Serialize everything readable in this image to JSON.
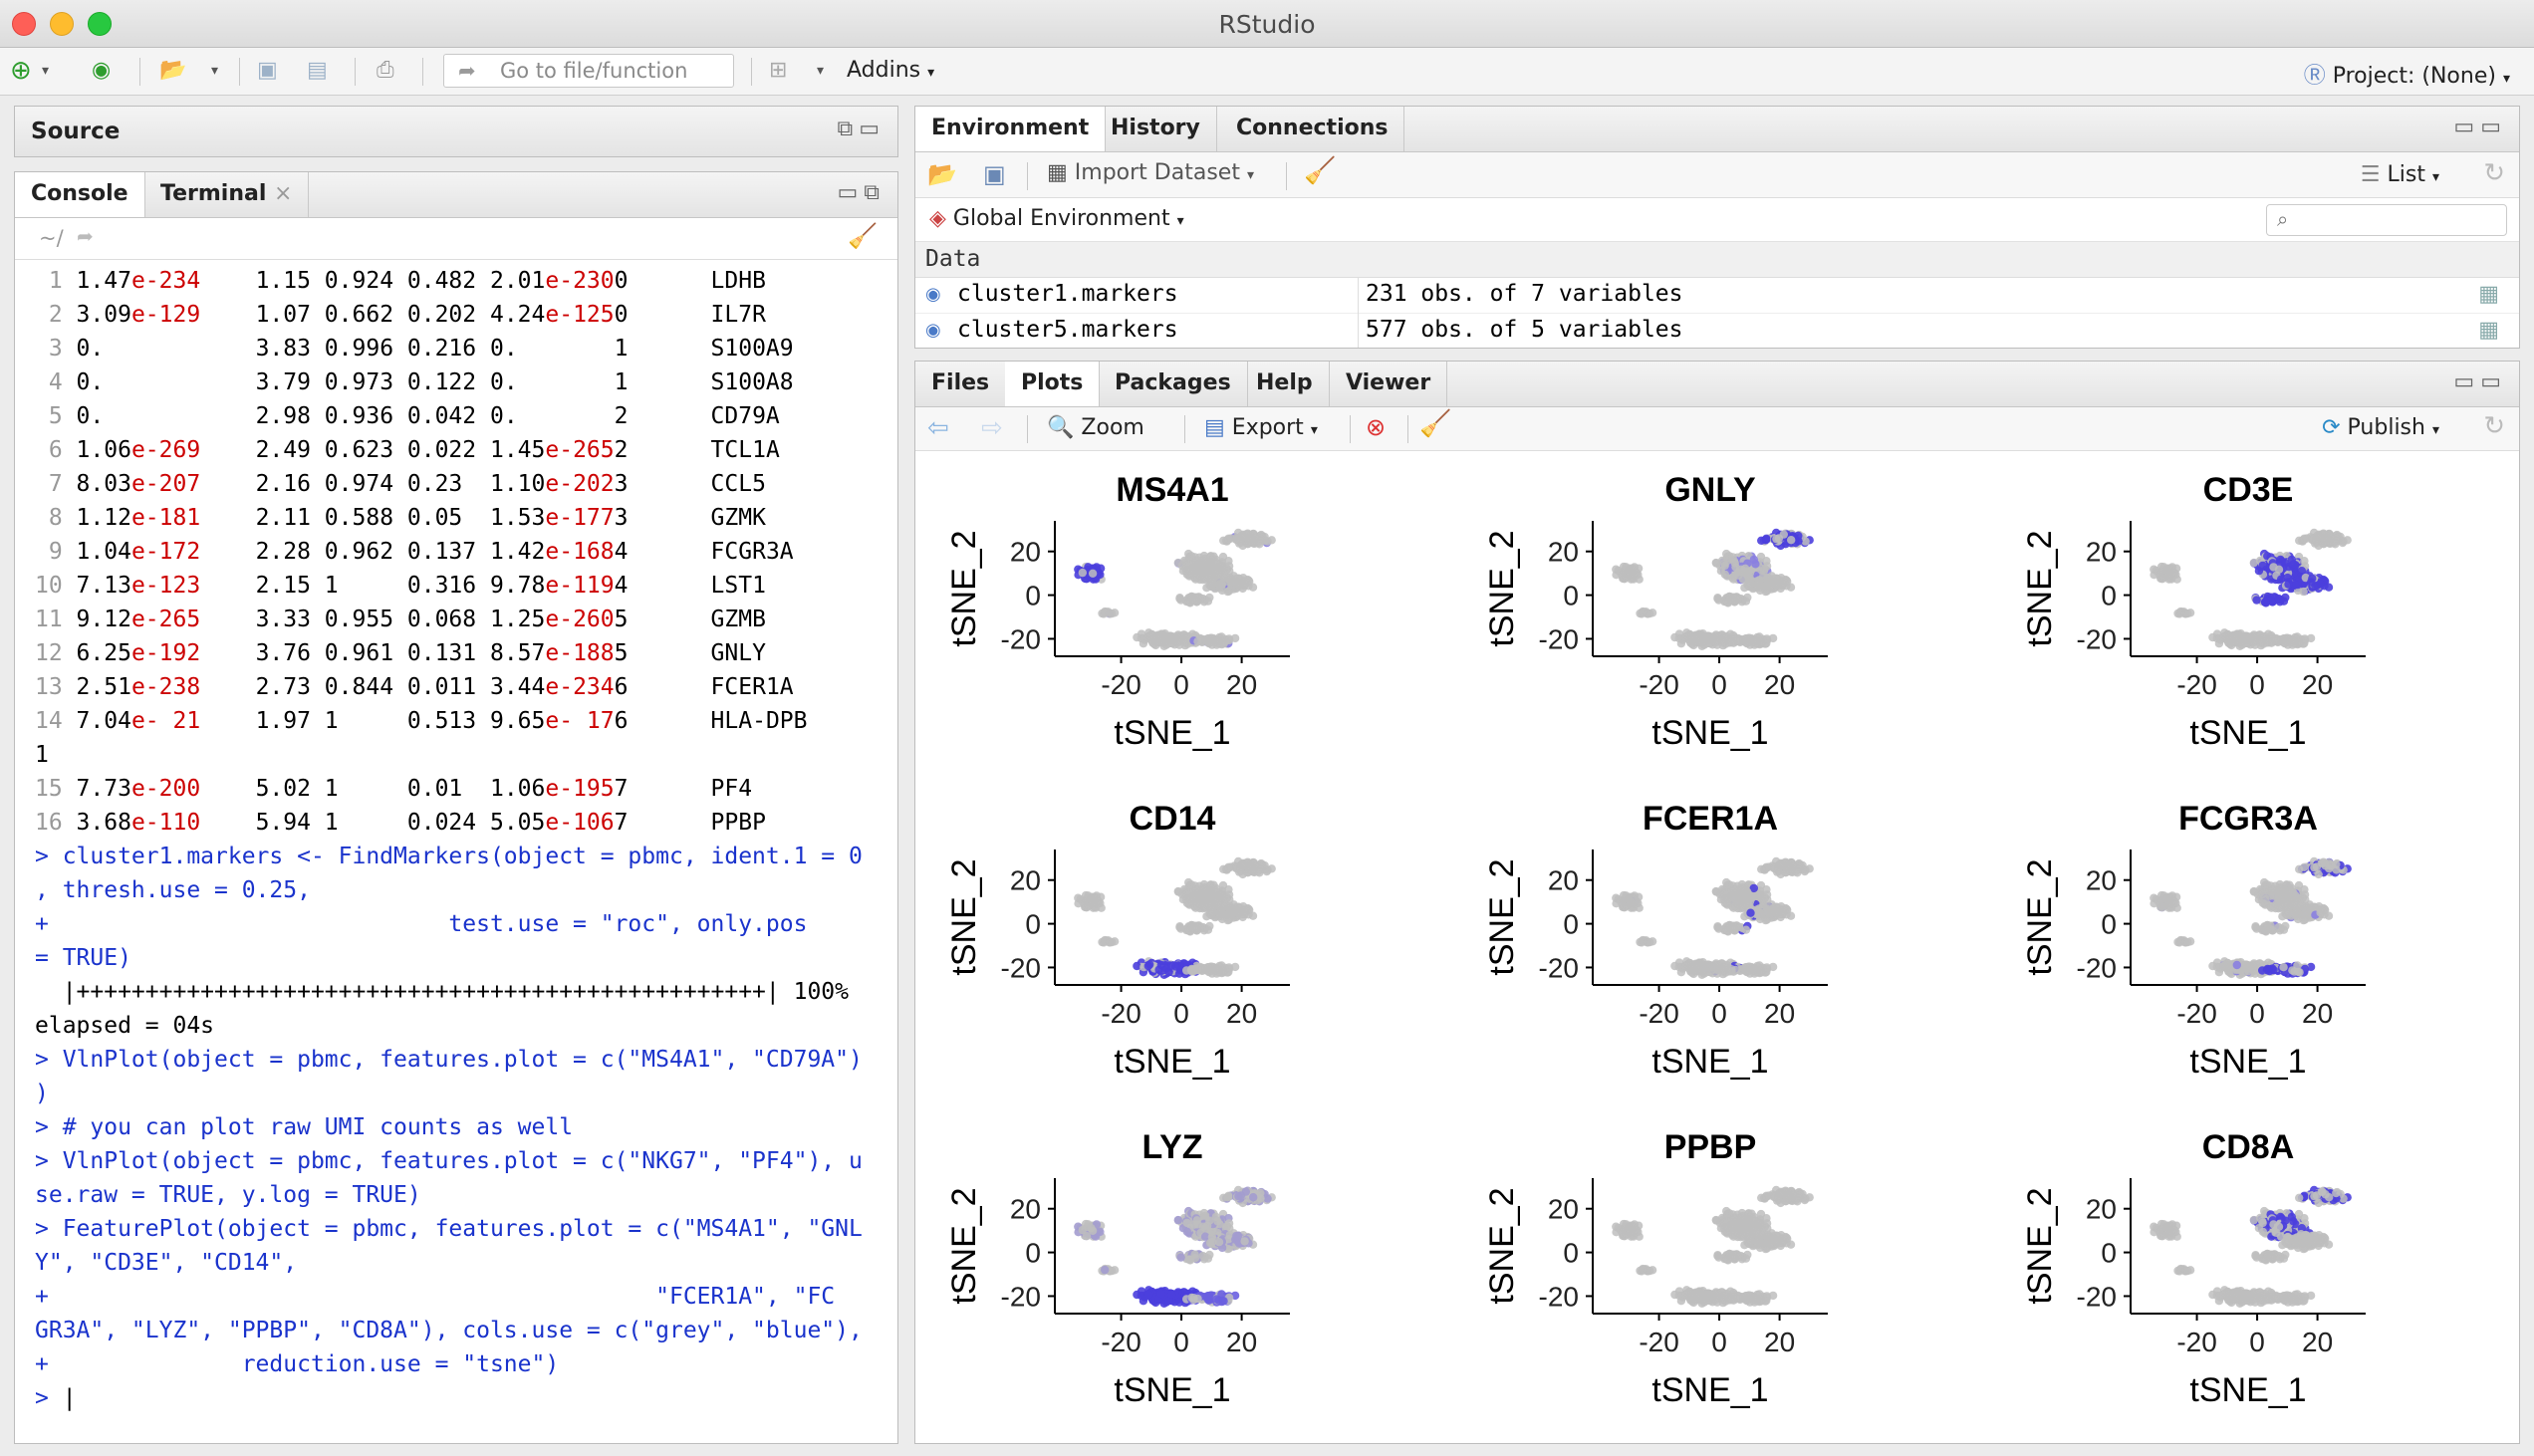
{
  "window": {
    "title": "RStudio"
  },
  "toolbar": {
    "go_to_file_placeholder": "Go to file/function",
    "addins": "Addins",
    "project": "Project: (None)"
  },
  "source_pane": {
    "title": "Source"
  },
  "console_pane": {
    "tabs": [
      "Console",
      "Terminal"
    ],
    "path": "~/",
    "rows": [
      {
        "n": "1",
        "p1": "1.47",
        "e1": "e-234",
        "c2": "1.15",
        "c3": "0.924",
        "c4": "0.482",
        "p2": "2.01",
        "e2": "e-230",
        "cl": "0",
        "gene": "LDHB"
      },
      {
        "n": "2",
        "p1": "3.09",
        "e1": "e-129",
        "c2": "1.07",
        "c3": "0.662",
        "c4": "0.202",
        "p2": "4.24",
        "e2": "e-125",
        "cl": "0",
        "gene": "IL7R"
      },
      {
        "n": "3",
        "p1": "0.",
        "e1": "",
        "c2": "3.83",
        "c3": "0.996",
        "c4": "0.216",
        "p2": "0.",
        "e2": "",
        "cl": "1",
        "gene": "S100A9"
      },
      {
        "n": "4",
        "p1": "0.",
        "e1": "",
        "c2": "3.79",
        "c3": "0.973",
        "c4": "0.122",
        "p2": "0.",
        "e2": "",
        "cl": "1",
        "gene": "S100A8"
      },
      {
        "n": "5",
        "p1": "0.",
        "e1": "",
        "c2": "2.98",
        "c3": "0.936",
        "c4": "0.042",
        "p2": "0.",
        "e2": "",
        "cl": "2",
        "gene": "CD79A"
      },
      {
        "n": "6",
        "p1": "1.06",
        "e1": "e-269",
        "c2": "2.49",
        "c3": "0.623",
        "c4": "0.022",
        "p2": "1.45",
        "e2": "e-265",
        "cl": "2",
        "gene": "TCL1A"
      },
      {
        "n": "7",
        "p1": "8.03",
        "e1": "e-207",
        "c2": "2.16",
        "c3": "0.974",
        "c4": "0.23",
        "p2": "1.10",
        "e2": "e-202",
        "cl": "3",
        "gene": "CCL5"
      },
      {
        "n": "8",
        "p1": "1.12",
        "e1": "e-181",
        "c2": "2.11",
        "c3": "0.588",
        "c4": "0.05",
        "p2": "1.53",
        "e2": "e-177",
        "cl": "3",
        "gene": "GZMK"
      },
      {
        "n": "9",
        "p1": "1.04",
        "e1": "e-172",
        "c2": "2.28",
        "c3": "0.962",
        "c4": "0.137",
        "p2": "1.42",
        "e2": "e-168",
        "cl": "4",
        "gene": "FCGR3A"
      },
      {
        "n": "10",
        "p1": "7.13",
        "e1": "e-123",
        "c2": "2.15",
        "c3": "1",
        "c4": "0.316",
        "p2": "9.78",
        "e2": "e-119",
        "cl": "4",
        "gene": "LST1"
      },
      {
        "n": "11",
        "p1": "9.12",
        "e1": "e-265",
        "c2": "3.33",
        "c3": "0.955",
        "c4": "0.068",
        "p2": "1.25",
        "e2": "e-260",
        "cl": "5",
        "gene": "GZMB"
      },
      {
        "n": "12",
        "p1": "6.25",
        "e1": "e-192",
        "c2": "3.76",
        "c3": "0.961",
        "c4": "0.131",
        "p2": "8.57",
        "e2": "e-188",
        "cl": "5",
        "gene": "GNLY"
      },
      {
        "n": "13",
        "p1": "2.51",
        "e1": "e-238",
        "c2": "2.73",
        "c3": "0.844",
        "c4": "0.011",
        "p2": "3.44",
        "e2": "e-234",
        "cl": "6",
        "gene": "FCER1A"
      },
      {
        "n": "14",
        "p1": "7.04",
        "e1": "e- 21",
        "c2": "1.97",
        "c3": "1",
        "c4": "0.513",
        "p2": "9.65",
        "e2": "e- 17",
        "cl": "6",
        "gene": "HLA-DPB"
      },
      {
        "n": "",
        "p1": "",
        "e1": "",
        "c2": "",
        "c3": "",
        "c4": "",
        "p2": "",
        "e2": "",
        "cl": "",
        "gene": "",
        "wrap": "1"
      },
      {
        "n": "15",
        "p1": "7.73",
        "e1": "e-200",
        "c2": "5.02",
        "c3": "1",
        "c4": "0.01",
        "p2": "1.06",
        "e2": "e-195",
        "cl": "7",
        "gene": "PF4"
      },
      {
        "n": "16",
        "p1": "3.68",
        "e1": "e-110",
        "c2": "5.94",
        "c3": "1",
        "c4": "0.024",
        "p2": "5.05",
        "e2": "e-106",
        "cl": "7",
        "gene": "PPBP"
      }
    ],
    "commands": [
      {
        "text": "> cluster1.markers <- FindMarkers(object = pbmc, ident.1 = 0",
        "cls": "blue"
      },
      {
        "text": ", thresh.use = 0.25,",
        "cls": "blue"
      },
      {
        "text": "+                             test.use = \"roc\", only.pos",
        "cls": "blue"
      },
      {
        "text": "= TRUE)",
        "cls": "blue"
      },
      {
        "text": "  |++++++++++++++++++++++++++++++++++++++++++++++++++| 100%",
        "cls": ""
      },
      {
        "text": "elapsed = 04s",
        "cls": ""
      },
      {
        "text": "> VlnPlot(object = pbmc, features.plot = c(\"MS4A1\", \"CD79A\")",
        "cls": "blue"
      },
      {
        "text": ")",
        "cls": "blue"
      },
      {
        "text": "> # you can plot raw UMI counts as well",
        "cls": "blue"
      },
      {
        "text": "> VlnPlot(object = pbmc, features.plot = c(\"NKG7\", \"PF4\"), u",
        "cls": "blue"
      },
      {
        "text": "se.raw = TRUE, y.log = TRUE)",
        "cls": "blue"
      },
      {
        "text": "> FeaturePlot(object = pbmc, features.plot = c(\"MS4A1\", \"GNL",
        "cls": "blue"
      },
      {
        "text": "Y\", \"CD3E\", \"CD14\",",
        "cls": "blue"
      },
      {
        "text": "+                                            \"FCER1A\", \"FC",
        "cls": "blue"
      },
      {
        "text": "GR3A\", \"LYZ\", \"PPBP\", \"CD8A\"), cols.use = c(\"grey\", \"blue\"),",
        "cls": "blue"
      },
      {
        "text": "+              reduction.use = \"tsne\")",
        "cls": "blue"
      },
      {
        "text": "> ",
        "cls": "blue"
      }
    ]
  },
  "env_pane": {
    "tabs": [
      "Environment",
      "History",
      "Connections"
    ],
    "import_dataset": "Import Dataset",
    "list_label": "List",
    "global_env": "Global Environment",
    "section": "Data",
    "objects": [
      {
        "name": "cluster1.markers",
        "value": "231 obs. of 7 variables"
      },
      {
        "name": "cluster5.markers",
        "value": "577 obs. of 5 variables"
      }
    ]
  },
  "files_pane": {
    "tabs": [
      "Files",
      "Plots",
      "Packages",
      "Help",
      "Viewer"
    ],
    "zoom": "Zoom",
    "export": "Export",
    "publish": "Publish"
  },
  "plots": {
    "panels": [
      {
        "gene": "MS4A1",
        "highlight": "left"
      },
      {
        "gene": "GNLY",
        "highlight": "topright"
      },
      {
        "gene": "CD3E",
        "highlight": "mainbody"
      },
      {
        "gene": "CD14",
        "highlight": "bottom"
      },
      {
        "gene": "FCER1A",
        "highlight": "sparse"
      },
      {
        "gene": "FCGR3A",
        "highlight": "bottomright"
      },
      {
        "gene": "LYZ",
        "highlight": "bottom_strong"
      },
      {
        "gene": "PPBP",
        "highlight": "none"
      },
      {
        "gene": "CD8A",
        "highlight": "upper"
      }
    ],
    "xlabel": "tSNE_1",
    "ylabel": "tSNE_2",
    "xticks": [
      "-20",
      "0",
      "20"
    ],
    "yticks": [
      "20",
      "0",
      "-20"
    ],
    "colors": {
      "low": "#bebebe",
      "high": "#4b3fdd"
    }
  }
}
